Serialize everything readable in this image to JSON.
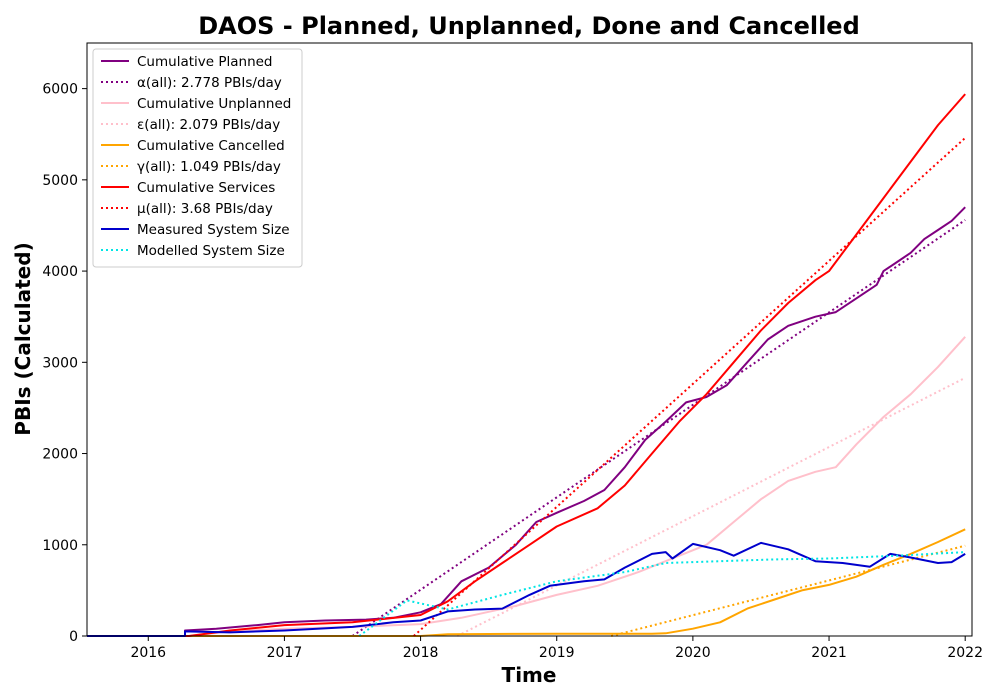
{
  "chart_data": {
    "type": "line",
    "title": "DAOS - Planned, Unplanned, Done  and Cancelled",
    "xlabel": "Time",
    "ylabel": "PBIs (Calculated)",
    "xlim": [
      2015.55,
      2022.05
    ],
    "ylim": [
      0,
      6500
    ],
    "x_ticks": [
      2016,
      2017,
      2018,
      2019,
      2020,
      2021,
      2022
    ],
    "y_ticks": [
      0,
      1000,
      2000,
      3000,
      4000,
      5000,
      6000
    ],
    "grid": false,
    "legend_position": "top-left",
    "series": [
      {
        "name": "Cumulative Planned",
        "color": "#800080",
        "style": "solid",
        "x": [
          2015.55,
          2016.27,
          2016.27,
          2016.5,
          2016.8,
          2017.0,
          2017.3,
          2017.6,
          2017.8,
          2018.0,
          2018.15,
          2018.3,
          2018.5,
          2018.7,
          2018.85,
          2019.0,
          2019.2,
          2019.35,
          2019.5,
          2019.65,
          2019.8,
          2019.95,
          2020.1,
          2020.25,
          2020.4,
          2020.55,
          2020.7,
          2020.9,
          2021.05,
          2021.2,
          2021.35,
          2021.4,
          2021.5,
          2021.6,
          2021.7,
          2021.8,
          2021.9,
          2022.0
        ],
        "y": [
          0,
          0,
          60,
          80,
          120,
          150,
          170,
          180,
          200,
          260,
          350,
          600,
          750,
          1000,
          1250,
          1350,
          1480,
          1600,
          1850,
          2150,
          2350,
          2560,
          2620,
          2750,
          3000,
          3250,
          3400,
          3500,
          3550,
          3700,
          3850,
          4000,
          4100,
          4200,
          4350,
          4450,
          4550,
          4700
        ]
      },
      {
        "name": "α(all): 2.778 PBIs/day",
        "color": "#800080",
        "style": "dotted",
        "x": [
          2017.5,
          2022.0
        ],
        "y": [
          0,
          4560
        ]
      },
      {
        "name": "Cumulative Unplanned",
        "color": "#ffc0cb",
        "style": "solid",
        "x": [
          2015.55,
          2016.3,
          2016.6,
          2017.0,
          2017.5,
          2018.0,
          2018.3,
          2018.7,
          2019.0,
          2019.3,
          2019.6,
          2019.9,
          2020.1,
          2020.3,
          2020.5,
          2020.7,
          2020.9,
          2021.05,
          2021.2,
          2021.4,
          2021.6,
          2021.8,
          2022.0
        ],
        "y": [
          0,
          0,
          50,
          80,
          100,
          130,
          200,
          330,
          450,
          550,
          700,
          880,
          1000,
          1250,
          1500,
          1700,
          1800,
          1850,
          2100,
          2400,
          2650,
          2950,
          3280
        ]
      },
      {
        "name": "ε(all): 2.079 PBIs/day",
        "color": "#ffc0cb",
        "style": "dotted",
        "x": [
          2018.27,
          2022.0
        ],
        "y": [
          0,
          2830
        ]
      },
      {
        "name": "Cumulative Cancelled",
        "color": "#ffa500",
        "style": "solid",
        "x": [
          2015.55,
          2018.0,
          2018.2,
          2019.0,
          2019.7,
          2019.8,
          2020.0,
          2020.2,
          2020.4,
          2020.6,
          2020.8,
          2021.0,
          2021.2,
          2021.4,
          2021.6,
          2021.8,
          2022.0
        ],
        "y": [
          0,
          0,
          20,
          25,
          25,
          30,
          80,
          150,
          300,
          400,
          500,
          560,
          650,
          780,
          900,
          1030,
          1170
        ]
      },
      {
        "name": "γ(all): 1.049 PBIs/day",
        "color": "#ffa500",
        "style": "dotted",
        "x": [
          2019.4,
          2022.0
        ],
        "y": [
          0,
          990
        ]
      },
      {
        "name": "Cumulative Services",
        "color": "#ff0000",
        "style": "solid",
        "x": [
          2015.55,
          2016.3,
          2016.6,
          2017.0,
          2017.5,
          2018.0,
          2018.2,
          2018.4,
          2018.6,
          2018.8,
          2019.0,
          2019.3,
          2019.5,
          2019.7,
          2019.9,
          2020.1,
          2020.3,
          2020.5,
          2020.7,
          2020.9,
          2021.0,
          2021.2,
          2021.4,
          2021.6,
          2021.8,
          2022.0
        ],
        "y": [
          0,
          0,
          60,
          120,
          150,
          230,
          380,
          600,
          800,
          1000,
          1200,
          1400,
          1650,
          2000,
          2350,
          2650,
          3000,
          3350,
          3650,
          3900,
          4000,
          4400,
          4800,
          5200,
          5600,
          5940
        ]
      },
      {
        "name": "μ(all): 3.68 PBIs/day",
        "color": "#ff0000",
        "style": "dotted",
        "x": [
          2017.95,
          2022.0
        ],
        "y": [
          0,
          5460
        ]
      },
      {
        "name": "Measured System Size",
        "color": "#0000cc",
        "style": "solid",
        "x": [
          2015.55,
          2016.27,
          2016.27,
          2016.6,
          2017.0,
          2017.5,
          2017.8,
          2018.0,
          2018.2,
          2018.4,
          2018.6,
          2018.8,
          2018.95,
          2019.2,
          2019.35,
          2019.5,
          2019.7,
          2019.8,
          2019.85,
          2020.0,
          2020.2,
          2020.3,
          2020.5,
          2020.7,
          2020.9,
          2021.1,
          2021.3,
          2021.45,
          2021.6,
          2021.8,
          2021.9,
          2022.0
        ],
        "y": [
          0,
          0,
          50,
          40,
          60,
          100,
          150,
          170,
          270,
          290,
          300,
          450,
          550,
          600,
          620,
          750,
          900,
          920,
          850,
          1010,
          940,
          880,
          1020,
          950,
          820,
          800,
          760,
          900,
          860,
          800,
          810,
          900
        ]
      },
      {
        "name": "Modelled System Size",
        "color": "#00e5e5",
        "style": "dotted",
        "x": [
          2017.55,
          2017.9,
          2018.2,
          2018.6,
          2019.0,
          2019.5,
          2019.8,
          2020.2,
          2020.6,
          2021.0,
          2021.5,
          2022.0
        ],
        "y": [
          0,
          390,
          290,
          450,
          600,
          700,
          800,
          820,
          840,
          850,
          880,
          920
        ]
      }
    ]
  }
}
